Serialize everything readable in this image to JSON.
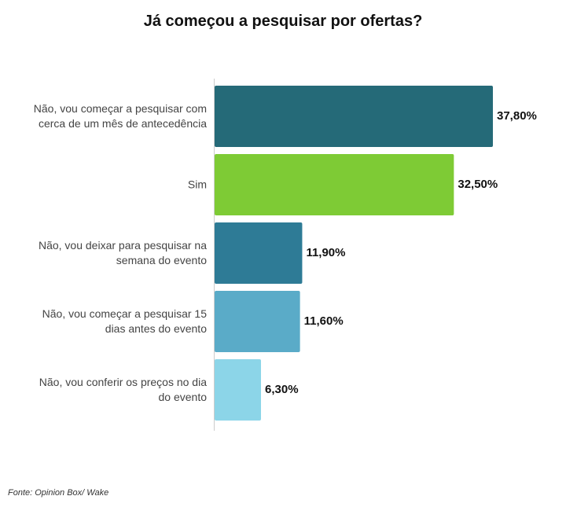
{
  "chart_data": {
    "type": "hbar",
    "title": "Já começou a pesquisar por ofertas?",
    "categories": [
      "Não, vou começar a pesquisar com cerca de um mês de antecedência",
      "Sim",
      "Não, vou deixar para pesquisar na semana do evento",
      "Não, vou começar a pesquisar 15 dias antes do evento",
      "Não, vou conferir os preços no dia do evento"
    ],
    "values": [
      37.8,
      32.5,
      11.9,
      11.6,
      6.3
    ],
    "value_labels": [
      "37,80%",
      "32,50%",
      "11,90%",
      "11,60%",
      "6,30%"
    ],
    "colors": [
      "#256a78",
      "#7ecb35",
      "#2e7b96",
      "#5aabc8",
      "#8cd5e8"
    ],
    "source": "Fonte: Opinion Box/ Wake"
  }
}
